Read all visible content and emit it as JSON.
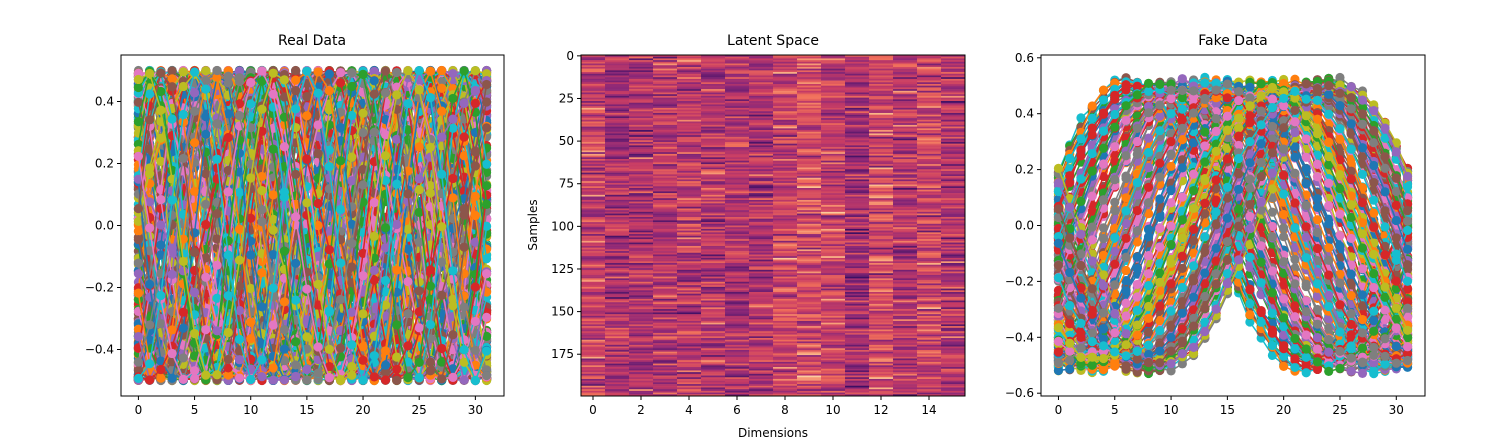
{
  "colors": [
    "#1f77b4",
    "#ff7f0e",
    "#2ca02c",
    "#d62728",
    "#9467bd",
    "#8c564b",
    "#e377c2",
    "#7f7f7f",
    "#bcbd22",
    "#17becf"
  ],
  "chart_data": [
    {
      "type": "line",
      "title": "Real Data",
      "xlabel": "",
      "ylabel": "",
      "xlim": [
        -1.55,
        32.55
      ],
      "ylim": [
        -0.55,
        0.55
      ],
      "xticks": [
        0,
        5,
        10,
        15,
        20,
        25,
        30
      ],
      "yticks": [
        -0.4,
        -0.2,
        0.0,
        0.2,
        0.4
      ],
      "ytick_labels": [
        "−0.4",
        "−0.2",
        "0.0",
        "0.2",
        "0.4"
      ],
      "markers": true,
      "n_series": 200,
      "x": [
        0,
        1,
        2,
        3,
        4,
        5,
        6,
        7,
        8,
        9,
        10,
        11,
        12,
        13,
        14,
        15,
        16,
        17,
        18,
        19,
        20,
        21,
        22,
        23,
        24,
        25,
        26,
        27,
        28,
        29,
        30,
        31
      ],
      "series_description_values": {
        "form": "0.5*sin(freq*x + phase)",
        "amplitude": 0.5
      }
    },
    {
      "type": "heatmap",
      "title": "Latent Space",
      "xlabel": "Dimensions",
      "ylabel": "Samples",
      "rows": 200,
      "cols": 16,
      "xticks": [
        0,
        2,
        4,
        6,
        8,
        10,
        12,
        14
      ],
      "yticks": [
        0,
        25,
        50,
        75,
        100,
        125,
        150,
        175
      ],
      "colormap": "magma (mid range)"
    },
    {
      "type": "line",
      "title": "Fake Data",
      "xlabel": "",
      "ylabel": "",
      "xlim": [
        -1.55,
        32.55
      ],
      "ylim": [
        -0.61,
        0.61
      ],
      "xticks": [
        0,
        5,
        10,
        15,
        20,
        25,
        30
      ],
      "yticks": [
        -0.6,
        -0.4,
        -0.2,
        0.0,
        0.2,
        0.4,
        0.6
      ],
      "ytick_labels": [
        "−0.6",
        "−0.4",
        "−0.2",
        "0.0",
        "0.2",
        "0.4",
        "0.6"
      ],
      "markers": true,
      "n_series": 200,
      "x": [
        0,
        1,
        2,
        3,
        4,
        5,
        6,
        7,
        8,
        9,
        10,
        11,
        12,
        13,
        14,
        15,
        16,
        17,
        18,
        19,
        20,
        21,
        22,
        23,
        24,
        25,
        26,
        27,
        28,
        29,
        30,
        31
      ],
      "series_description_values": {
        "form": "0.5*sin(x*pi/16 + phase), phase varied",
        "amplitude": 0.5
      }
    }
  ]
}
